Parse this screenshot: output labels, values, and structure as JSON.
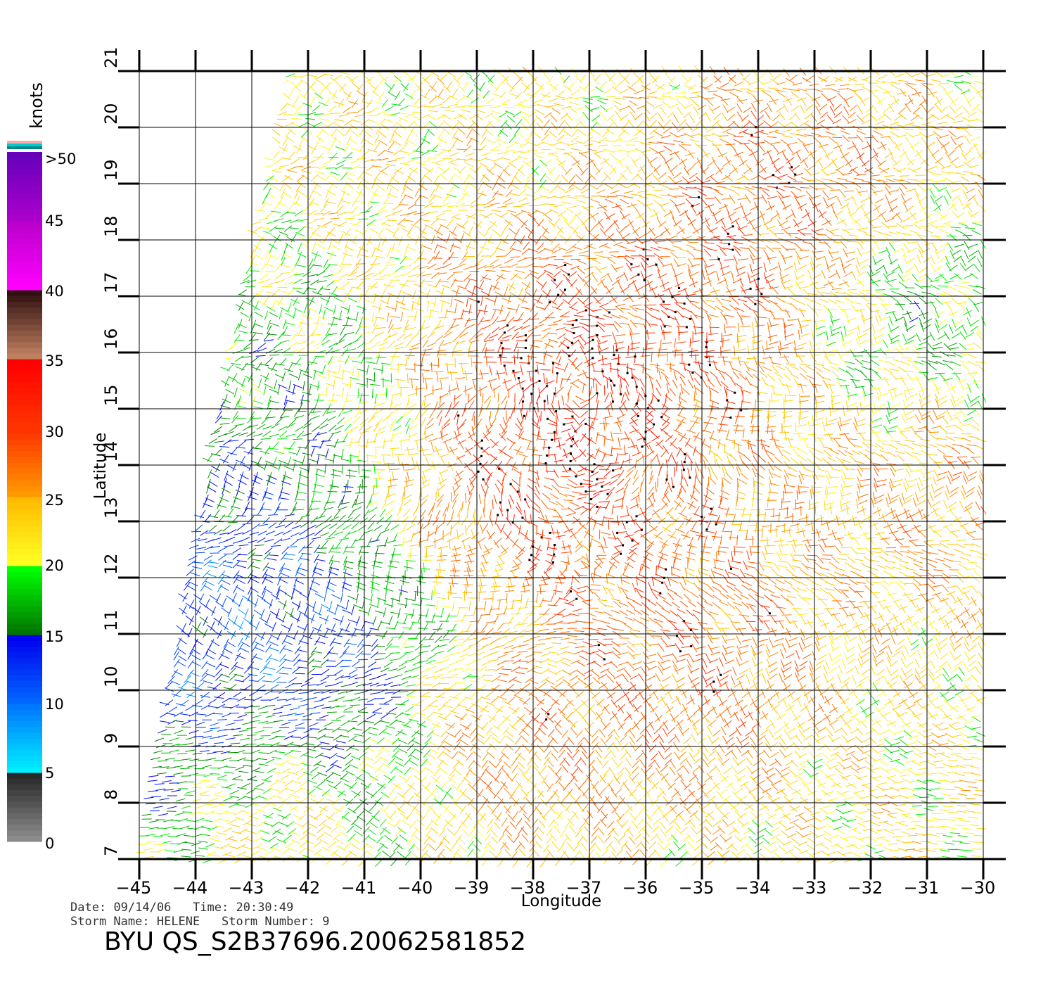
{
  "chart_data": {
    "type": "wind-vector-map",
    "xlabel": "Longitude",
    "ylabel": "Latitude",
    "xlim": [
      -45,
      -30
    ],
    "ylim": [
      7,
      21
    ],
    "x_ticks": [
      "-45",
      "-44",
      "-43",
      "-42",
      "-41",
      "-40",
      "-39",
      "-38",
      "-37",
      "-36",
      "-35",
      "-34",
      "-33",
      "-32",
      "-31",
      "-30"
    ],
    "y_ticks": [
      "7",
      "8",
      "9",
      "10",
      "11",
      "12",
      "13",
      "14",
      "15",
      "16",
      "17",
      "18",
      "19",
      "20",
      "21"
    ],
    "grid": true,
    "swath_west_edge": [
      [
        -44.9,
        7
      ],
      [
        -43.9,
        13
      ],
      [
        -42.9,
        18
      ],
      [
        -42.2,
        21
      ]
    ],
    "wind_field": {
      "cyclonic_center": [
        -37.2,
        15.3
      ],
      "wind_regions": [
        {
          "center": [
            -37.8,
            15.6
          ],
          "speed_kt": 34,
          "radius_deg": 2.0
        },
        {
          "center": [
            -38.5,
            13.6
          ],
          "speed_kt": 32,
          "radius_deg": 1.3
        },
        {
          "center": [
            -33.5,
            17.9
          ],
          "speed_kt": 31,
          "radius_deg": 1.6
        },
        {
          "center": [
            -30.8,
            13.8
          ],
          "speed_kt": 27,
          "radius_deg": 1.3
        },
        {
          "center": [
            -35.5,
            10.8
          ],
          "speed_kt": 30,
          "radius_deg": 1.4
        },
        {
          "center": [
            -38.5,
            9.2
          ],
          "speed_kt": 29,
          "radius_deg": 1.2
        },
        {
          "center": [
            -42.5,
            7.7
          ],
          "speed_kt": 26,
          "radius_deg": 1.0
        },
        {
          "center": [
            -42.8,
            11.0
          ],
          "speed_kt": 8,
          "radius_deg": 2.3
        },
        {
          "center": [
            -41.5,
            15.5
          ],
          "speed_kt": 16,
          "radius_deg": 1.5
        },
        {
          "center": [
            -31.5,
            16.5
          ],
          "speed_kt": 13,
          "radius_deg": 1.2
        },
        {
          "center": [
            -38.0,
            19.8
          ],
          "speed_kt": 21,
          "radius_deg": 1.5
        }
      ],
      "background_speed_kt": 22
    },
    "colorbar": {
      "title": "knots",
      "labels": [
        ">50",
        "45",
        "40",
        "35",
        "30",
        "25",
        "20",
        "15",
        "10",
        "5",
        "0"
      ],
      "levels": [
        0,
        5,
        10,
        15,
        20,
        25,
        30,
        35,
        40,
        45,
        50
      ],
      "colors": {
        "0-5": [
          "#8c8c8c",
          "#282828"
        ],
        "5-10": [
          "#00eeff",
          "#0077ff"
        ],
        "10-15": [
          "#0066ff",
          "#0000ee"
        ],
        "15-20": [
          "#007700",
          "#00ff00"
        ],
        "20-25": [
          "#ffff22",
          "#ffbb00"
        ],
        "25-30": [
          "#ff9900",
          "#ff3300"
        ],
        "30-35": [
          "#ff3300",
          "#ff0000"
        ],
        "35-40": [
          "#c08060",
          "#301010"
        ],
        "40-45": [
          "#ff00ff",
          "#bb00cc"
        ],
        "45-50": [
          "#aa00cc",
          "#6600bb"
        ]
      },
      "top_stripes": [
        "#ffaaaa",
        "#00cccc",
        "#008888"
      ]
    }
  },
  "info": {
    "date_label": "Date:",
    "date": "09/14/06",
    "time_label": "Time:",
    "time": "20:30:49",
    "storm_name_label": "Storm Name:",
    "storm_name": "HELENE",
    "storm_number_label": "Storm Number:",
    "storm_number": "9",
    "product": "BYU QS_S2B37696.20062581852"
  }
}
